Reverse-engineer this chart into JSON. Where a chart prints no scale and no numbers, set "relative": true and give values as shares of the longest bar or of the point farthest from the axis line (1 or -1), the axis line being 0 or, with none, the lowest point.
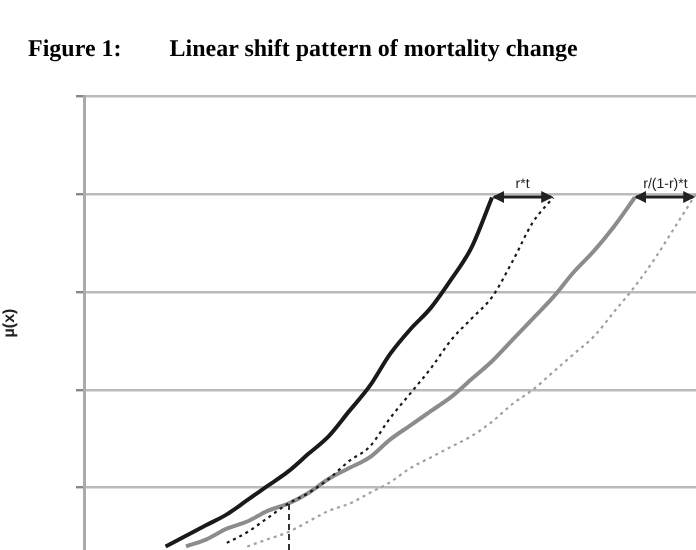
{
  "chart_data": {
    "type": "line",
    "title": "Figure 1:  Linear shift pattern of mortality change",
    "ylabel": "µ(x)",
    "relative": true,
    "grid": "y",
    "legend": false,
    "marker": "none",
    "categories": [
      null,
      null,
      null,
      null,
      null,
      null,
      null,
      null,
      null,
      null,
      null,
      null,
      null,
      null,
      null,
      null,
      null,
      null,
      null,
      null,
      null,
      null,
      null,
      null,
      null,
      null,
      null,
      null,
      null,
      null,
      null
    ],
    "series": [
      {
        "color": "#1a1a1a",
        "line_style": "solid",
        "values": [
          null,
          null,
          null,
          null,
          0.01,
          0.04,
          0.07,
          0.1,
          0.14,
          0.18,
          0.22,
          0.27,
          0.32,
          0.39,
          0.46,
          0.55,
          0.62,
          0.68,
          0.76,
          0.85,
          0.99,
          null,
          null,
          null,
          null,
          null,
          null,
          null,
          null,
          null,
          null
        ]
      },
      {
        "color": "#1a1a1a",
        "line_style": "dotted",
        "values": [
          null,
          null,
          null,
          null,
          null,
          null,
          null,
          0.02,
          0.05,
          0.09,
          0.13,
          0.16,
          0.2,
          0.25,
          0.29,
          0.37,
          0.44,
          0.51,
          0.59,
          0.65,
          0.71,
          0.81,
          0.92,
          0.99,
          null,
          null,
          null,
          null,
          null,
          null,
          null
        ]
      },
      {
        "color": "#8c8c8c",
        "line_style": "solid",
        "values": [
          null,
          null,
          null,
          null,
          null,
          0.01,
          0.03,
          0.06,
          0.08,
          0.11,
          0.13,
          0.16,
          0.2,
          0.23,
          0.26,
          0.31,
          0.35,
          0.39,
          0.43,
          0.48,
          0.53,
          0.59,
          0.65,
          0.71,
          0.78,
          0.84,
          0.91,
          0.99,
          null,
          null,
          null
        ]
      },
      {
        "color": "#a0a0a0",
        "line_style": "dotted",
        "values": [
          null,
          null,
          null,
          null,
          null,
          null,
          null,
          null,
          0.01,
          0.03,
          0.05,
          0.08,
          0.11,
          0.13,
          0.16,
          0.19,
          0.23,
          0.26,
          0.29,
          0.32,
          0.36,
          0.41,
          0.45,
          0.5,
          0.55,
          0.6,
          0.67,
          0.74,
          0.82,
          0.91,
          1
        ]
      }
    ],
    "annotations": [
      "r*t",
      "r/(1-r)*t"
    ]
  }
}
